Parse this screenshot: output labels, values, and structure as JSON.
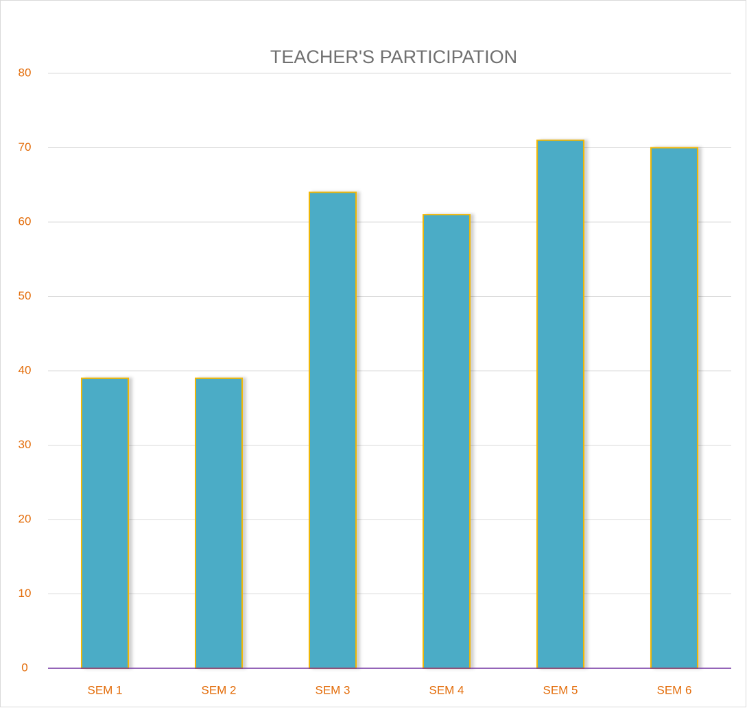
{
  "chart_data": {
    "type": "bar",
    "title": "TEACHER'S PARTICIPATION",
    "categories": [
      "SEM 1",
      "SEM 2",
      "SEM 3",
      "SEM 4",
      "SEM 5",
      "SEM 6"
    ],
    "values": [
      39,
      39,
      64,
      61,
      71,
      70
    ],
    "color": "#4bacc6",
    "edge_color": "#f2b705",
    "ylim": [
      0,
      80
    ],
    "yticks": [
      0,
      10,
      20,
      30,
      40,
      50,
      60,
      70,
      80
    ],
    "grid": true
  }
}
